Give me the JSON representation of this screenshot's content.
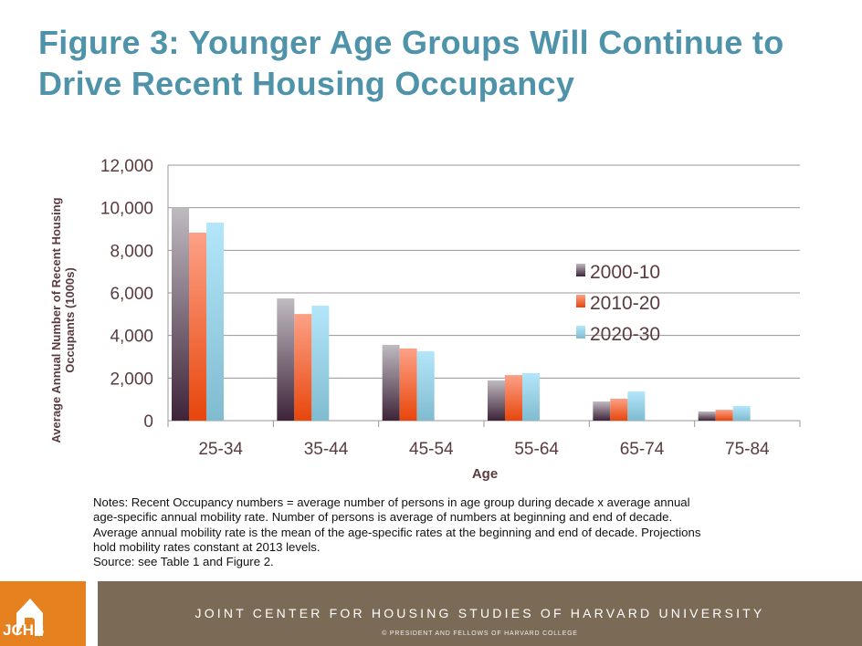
{
  "title_line1": "Figure 3: Younger Age Groups Will Continue to",
  "title_line2": "Drive Recent Housing Occupancy",
  "chart_data": {
    "type": "bar",
    "categories": [
      "25-34",
      "35-44",
      "45-54",
      "55-64",
      "65-74",
      "75-84"
    ],
    "series": [
      {
        "name": "2000-10",
        "values": [
          10000,
          5740,
          3560,
          1890,
          900,
          430
        ],
        "color": "#4a3346"
      },
      {
        "name": "2010-20",
        "values": [
          8830,
          5010,
          3390,
          2140,
          1030,
          510
        ],
        "color": "#e84a10"
      },
      {
        "name": "2020-30",
        "values": [
          9300,
          5400,
          3260,
          2230,
          1370,
          690
        ],
        "color": "#86bfd3"
      }
    ],
    "xlabel": "Age",
    "ylabel": "Average Annual Number of Recent Housing Occupants (1000s)",
    "ylabel_line1": "Average Annual Number of Recent Housing",
    "ylabel_line2": "Occupants (1000s)",
    "ylim": [
      0,
      12000
    ],
    "yticks": [
      "0",
      "2,000",
      "4,000",
      "6,000",
      "8,000",
      "10,000",
      "12,000"
    ],
    "grid": true,
    "legend": "right"
  },
  "notes": [
    "Notes: Recent Occupancy numbers = average number of persons in age group during decade x average annual",
    "age-specific annual mobility rate.  Number of persons is average of numbers at beginning and end of decade.",
    "Average annual mobility rate is the mean of the age-specific rates at the beginning and end of decade. Projections",
    "hold mobility rates constant at 2013 levels.",
    "Source: see Table 1 and Figure 2."
  ],
  "footer": {
    "main": "JOINT CENTER FOR HOUSING STUDIES OF HARVARD UNIVERSITY",
    "copy": "© PRESIDENT  AND FELLOWS  OF HARVARD  COLLEGE",
    "logo": "JCHS"
  },
  "colors": {
    "title": "#4e93aa",
    "footer": "#7b6a55",
    "logo": "#e5821f"
  }
}
